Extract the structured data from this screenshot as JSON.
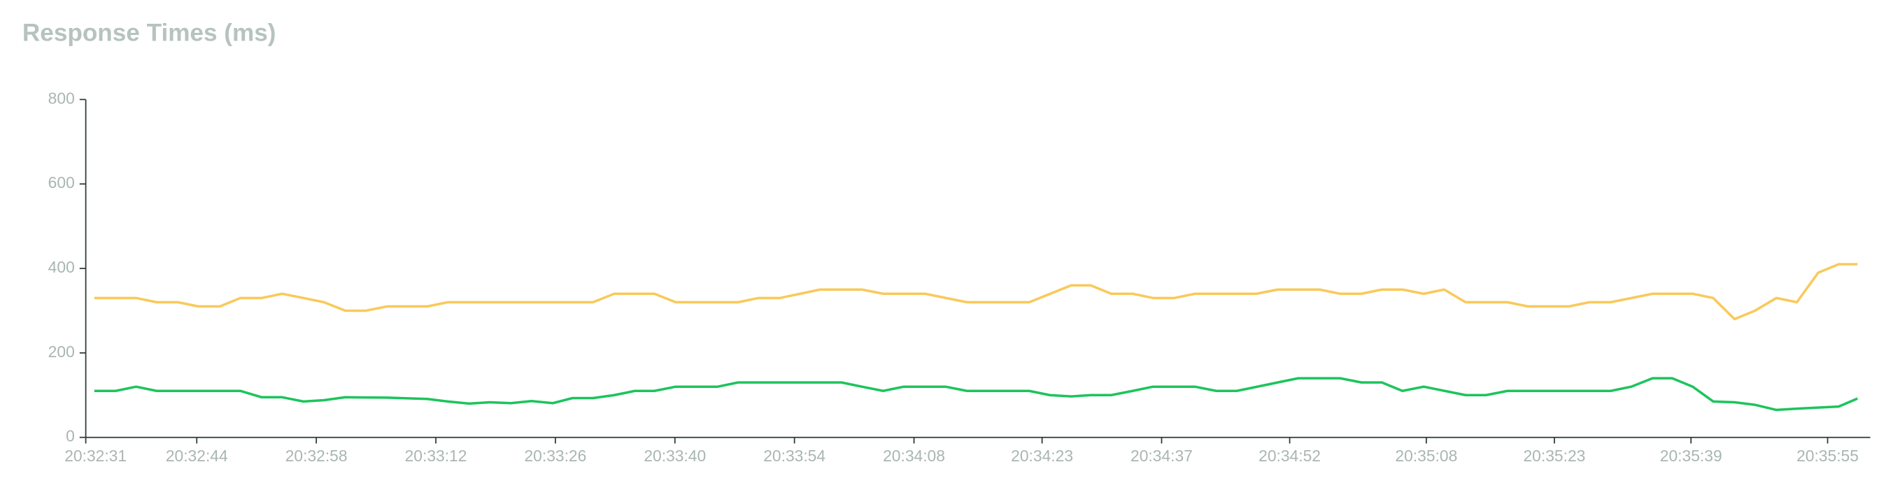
{
  "chart_data": {
    "type": "line",
    "title": "Response Times (ms)",
    "xlim": [
      73951,
      74160
    ],
    "xticks": [
      {
        "value": 73951,
        "label": "20:32:31"
      },
      {
        "value": 73964,
        "label": "20:32:44"
      },
      {
        "value": 73978,
        "label": "20:32:58"
      },
      {
        "value": 73992,
        "label": "20:33:12"
      },
      {
        "value": 74006,
        "label": "20:33:26"
      },
      {
        "value": 74020,
        "label": "20:33:40"
      },
      {
        "value": 74034,
        "label": "20:33:54"
      },
      {
        "value": 74048,
        "label": "20:34:08"
      },
      {
        "value": 74063,
        "label": "20:34:23"
      },
      {
        "value": 74077,
        "label": "20:34:37"
      },
      {
        "value": 74092,
        "label": "20:34:52"
      },
      {
        "value": 74108,
        "label": "20:35:08"
      },
      {
        "value": 74123,
        "label": "20:35:23"
      },
      {
        "value": 74139,
        "label": "20:35:39"
      },
      {
        "value": 74155,
        "label": "20:35:55"
      }
    ],
    "ylim": [
      0,
      800
    ],
    "yticks": [
      0,
      200,
      400,
      600,
      800
    ],
    "series": [
      {
        "color": "#f9c95a",
        "x": [
          73952,
          73954.5,
          73956.9,
          73959.3,
          73961.8,
          73964.2,
          73966.7,
          73969.1,
          73971.6,
          73974,
          73976.5,
          73978.9,
          73981.4,
          73983.8,
          73986.3,
          73991,
          73993.4,
          73995.9,
          74010.4,
          74012.9,
          74017.6,
          74020.1,
          74025,
          74027.4,
          74029.8,
          74032.3,
          74037,
          74039.5,
          74041.9,
          74044.4,
          74049.3,
          74054.2,
          74061.5,
          74066.4,
          74068.7,
          74071.1,
          74073.6,
          74076,
          74078.5,
          74080.9,
          74083.4,
          74088.1,
          74090.6,
          74095.5,
          74097.9,
          74100.4,
          74102.8,
          74105.2,
          74107.7,
          74110.1,
          74112.6,
          74117.5,
          74119.9,
          74124.7,
          74127.1,
          74129.6,
          74134.5,
          74139.2,
          74141.6,
          74144.1,
          74146.5,
          74149,
          74151.4,
          74153.9,
          74156.3,
          74158.5
        ],
        "values": [
          330,
          330,
          330,
          320,
          320,
          310,
          310,
          330,
          330,
          340,
          330,
          320,
          300,
          300,
          310,
          310,
          320,
          320,
          320,
          340,
          340,
          320,
          320,
          320,
          330,
          330,
          350,
          350,
          350,
          340,
          340,
          320,
          320,
          360,
          360,
          340,
          340,
          330,
          330,
          340,
          340,
          340,
          350,
          350,
          340,
          340,
          350,
          350,
          340,
          350,
          320,
          320,
          310,
          310,
          320,
          320,
          340,
          340,
          330,
          280,
          300,
          330,
          320,
          390,
          410,
          410
        ]
      },
      {
        "color": "#1cc45c",
        "x": [
          73952,
          73954.5,
          73956.9,
          73959.3,
          73966.7,
          73969.1,
          73971.6,
          73974,
          73976.5,
          73978.9,
          73981.4,
          73986.3,
          73991,
          73993.4,
          73995.9,
          73998.3,
          74000.8,
          74003.2,
          74005.7,
          74008,
          74010.4,
          74012.9,
          74015.3,
          74017.6,
          74020.1,
          74025,
          74027.4,
          74039.5,
          74041.9,
          74044.4,
          74046.8,
          74051.7,
          74054.2,
          74061.5,
          74063.9,
          74066.4,
          74068.7,
          74071.1,
          74073.6,
          74076,
          74080.9,
          74083.4,
          74085.8,
          74090.6,
          74093,
          74097.9,
          74100.4,
          74102.8,
          74105.2,
          74107.7,
          74112.6,
          74115,
          74117.5,
          74127.1,
          74129.6,
          74132,
          74134.5,
          74136.8,
          74139.2,
          74141.6,
          74144.1,
          74146.5,
          74149,
          74151.4,
          74156.3,
          74158.5
        ],
        "values": [
          110,
          110,
          120,
          110,
          110,
          110,
          95,
          95,
          85,
          88,
          95,
          94,
          91,
          85,
          80,
          83,
          81,
          86,
          81,
          93,
          93,
          100,
          110,
          110,
          120,
          120,
          130,
          130,
          120,
          110,
          120,
          120,
          110,
          110,
          100,
          97,
          100,
          100,
          110,
          120,
          120,
          110,
          110,
          130,
          140,
          140,
          130,
          130,
          110,
          120,
          100,
          100,
          110,
          110,
          110,
          120,
          140,
          140,
          120,
          85,
          83,
          77,
          65,
          68,
          73,
          92
        ]
      }
    ]
  }
}
